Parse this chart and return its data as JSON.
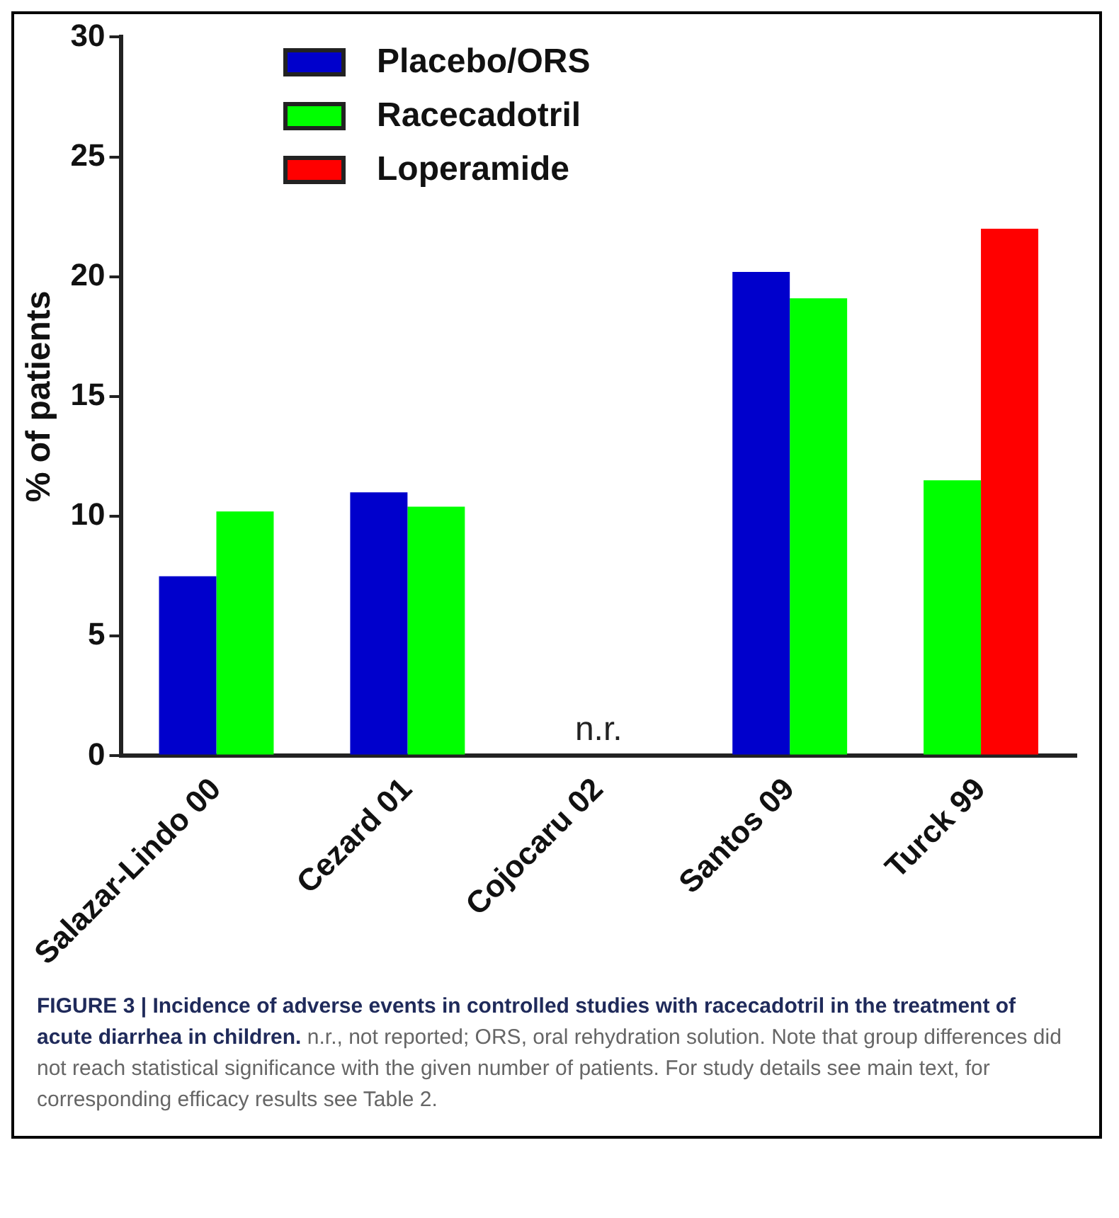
{
  "chart_data": {
    "type": "bar",
    "ylabel": "% of patients",
    "categories": [
      "Salazar-Lindo 00",
      "Cezard 01",
      "Cojocaru 02",
      "Santos 09",
      "Turck 99"
    ],
    "series": [
      {
        "name": "Placebo/ORS",
        "color": "#0000cc",
        "values": [
          7.5,
          11,
          null,
          20.2,
          null
        ]
      },
      {
        "name": "Racecadotril",
        "color": "#00ff00",
        "values": [
          10.2,
          10.4,
          null,
          19.1,
          11.5
        ]
      },
      {
        "name": "Loperamide",
        "color": "#ff0000",
        "values": [
          null,
          null,
          null,
          null,
          22
        ]
      }
    ],
    "ylim": [
      0,
      30
    ],
    "yticks": [
      0,
      5,
      10,
      15,
      20,
      25,
      30
    ],
    "grid": false,
    "legend": "top left",
    "annotations": [
      "n.r.",
      "FIGURE 3 | Incidence of adverse events in controlled studies with racecadotril in the treatment of acute diarrhea in children.",
      "n.r., not reported; ORS, oral rehydration solution. Note that group differences did not reach statistical significance with the given number of patients. For study details see main text, for corresponding efficacy results see Table 2."
    ]
  }
}
